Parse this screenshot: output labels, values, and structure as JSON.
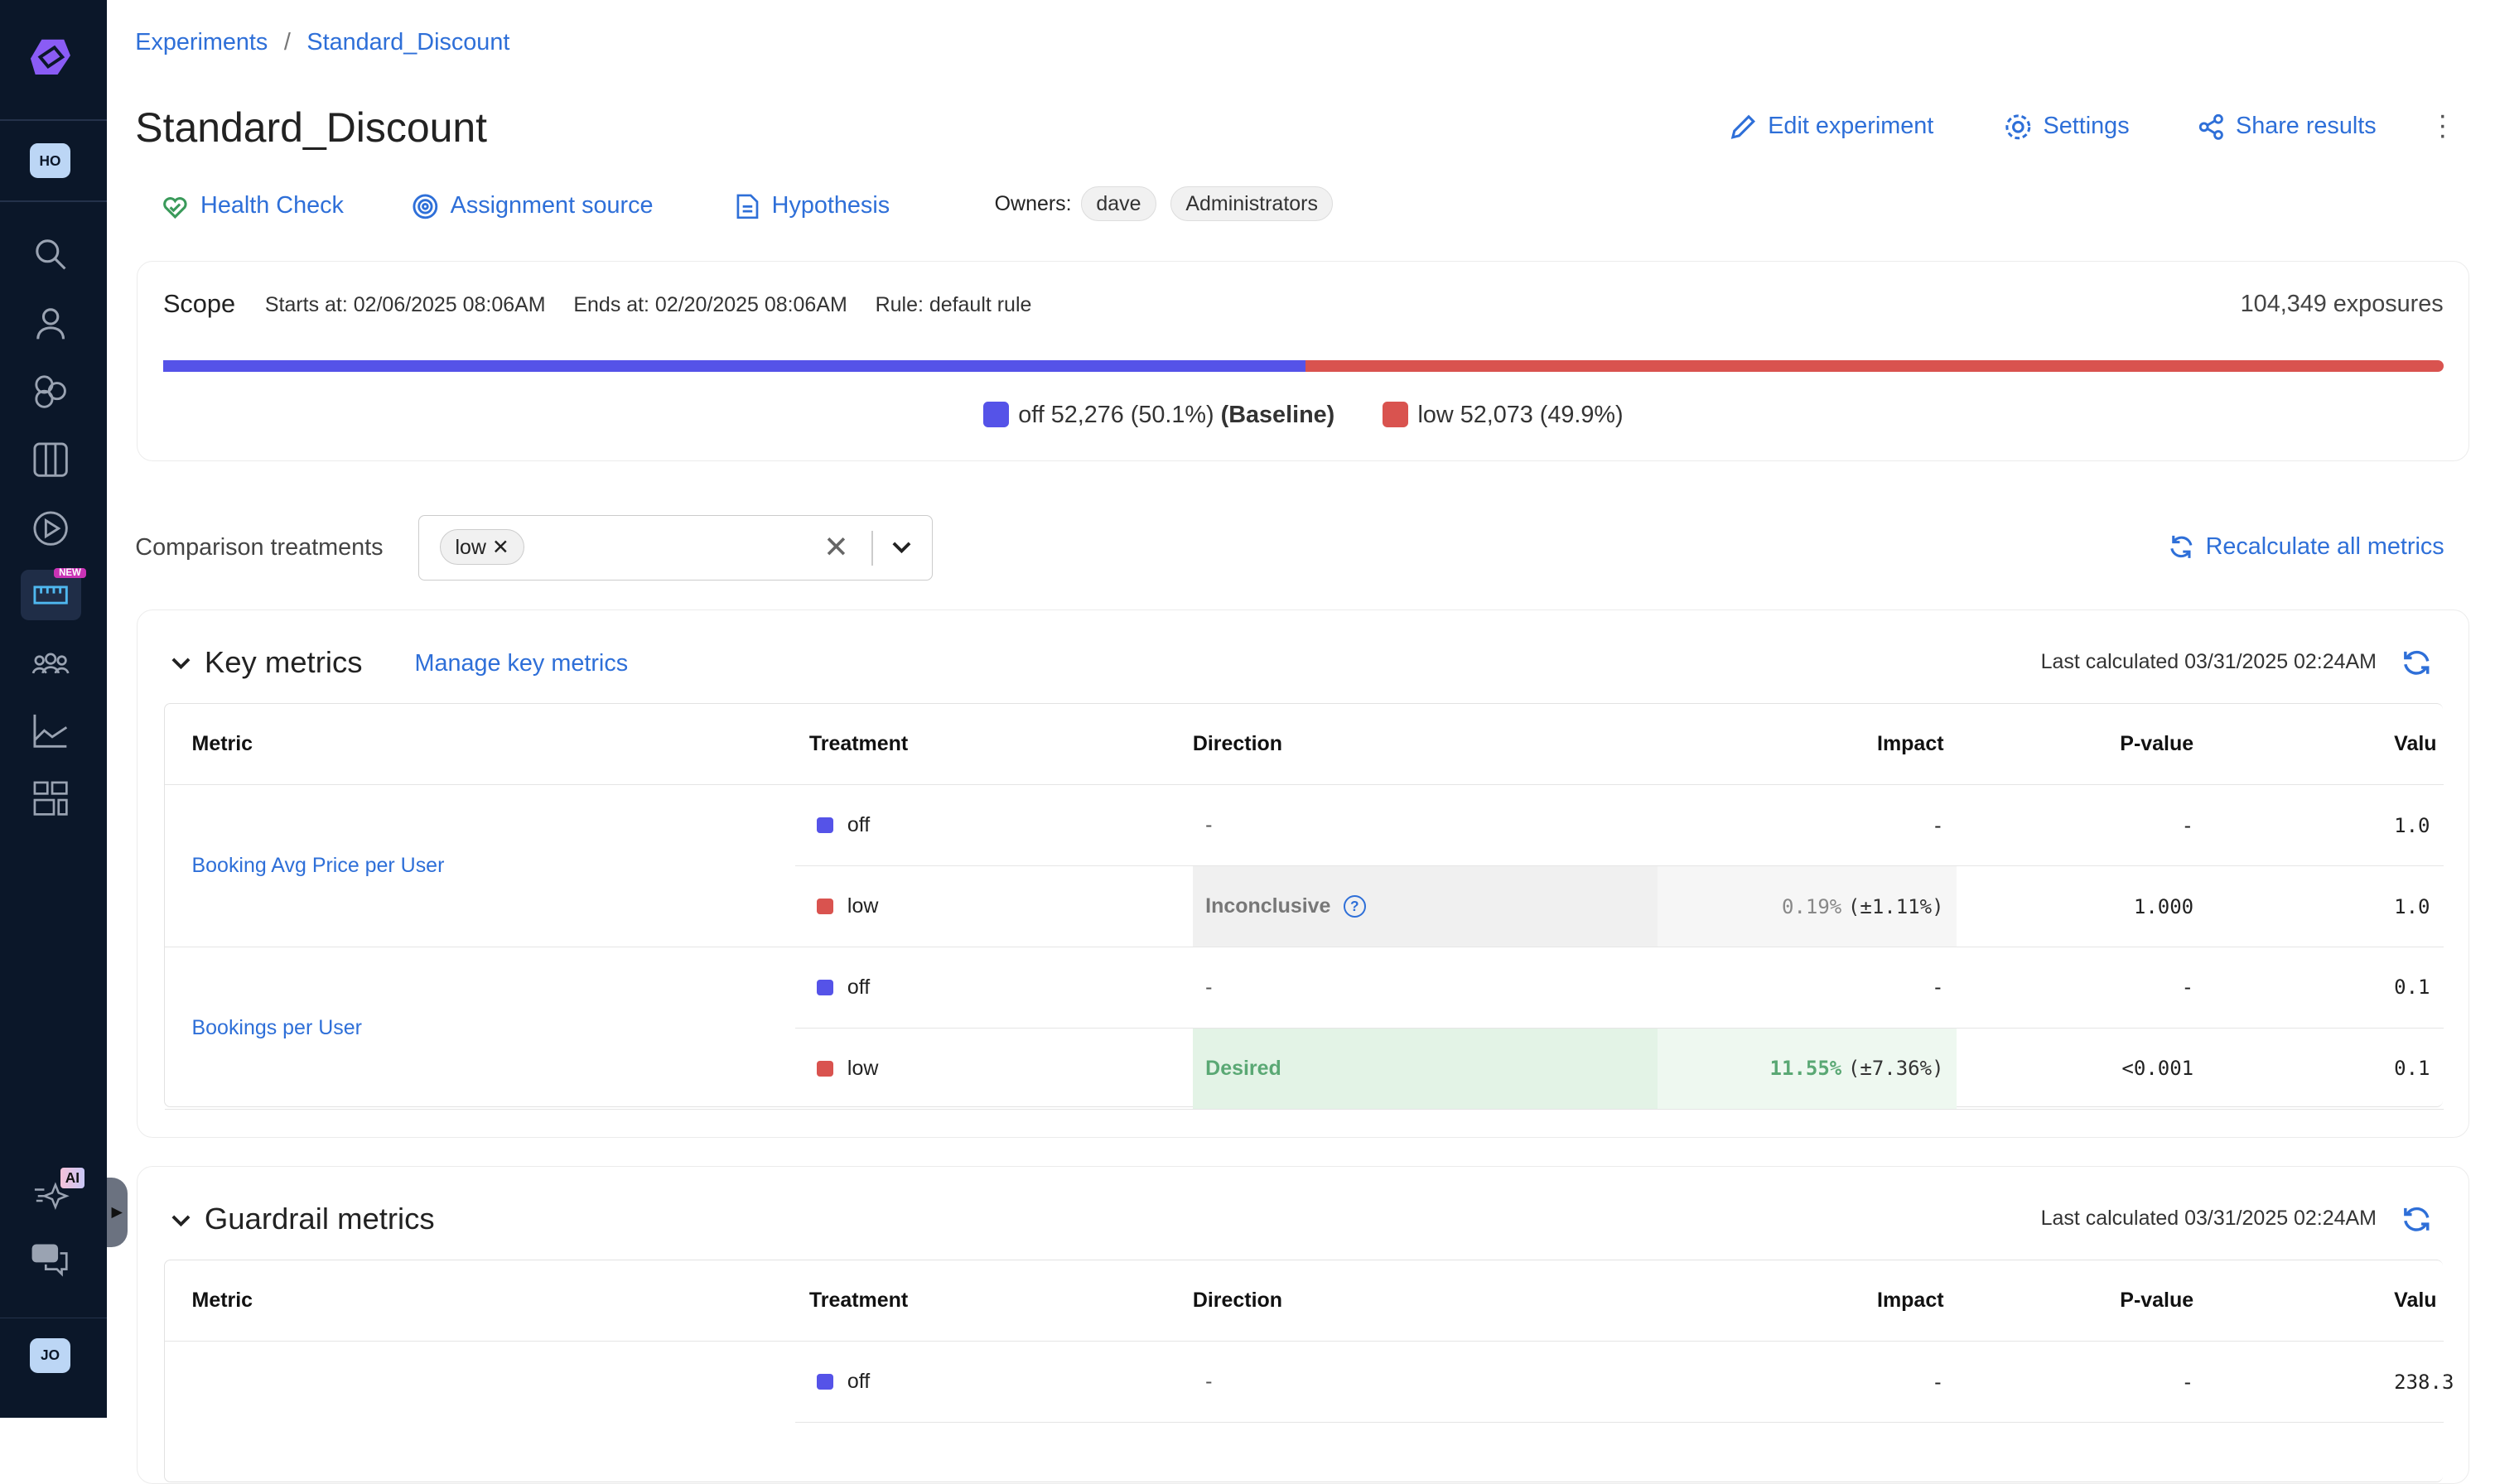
{
  "sidebar": {
    "workspace_avatar": "HO",
    "user_avatar": "JO",
    "new_badge": "NEW",
    "ai_badge": "AI",
    "icons": [
      "search-icon",
      "user-icon",
      "segments-icon",
      "columns-icon",
      "play-icon",
      "experiments-ruler-icon",
      "teams-icon",
      "analytics-chart-icon",
      "dashboard-icon"
    ]
  },
  "breadcrumb": {
    "root": "Experiments",
    "separator": "/",
    "current": "Standard_Discount"
  },
  "header": {
    "title": "Standard_Discount",
    "edit": "Edit experiment",
    "settings": "Settings",
    "share": "Share results"
  },
  "tabs": {
    "health": "Health Check",
    "assignment": "Assignment source",
    "hypothesis": "Hypothesis",
    "owners_label": "Owners:",
    "owners": [
      "dave",
      "Administrators"
    ]
  },
  "scope": {
    "title": "Scope",
    "starts": "Starts at: 02/06/2025 08:06AM",
    "ends": "Ends at: 02/20/2025 08:06AM",
    "rule": "Rule: default rule",
    "exposures": "104,349 exposures",
    "off_share": 50.1,
    "off_label": "off 52,276 (50.1%)",
    "baseline": "(Baseline)",
    "low_label": "low 52,073 (49.9%)"
  },
  "colors": {
    "off": "#5553e8",
    "low": "#d9534f",
    "link": "#2e6fd8",
    "desired_bg": "#e3f3e6",
    "desired_text": "#5aa874"
  },
  "comparison": {
    "label": "Comparison treatments",
    "chip": "low",
    "recalc": "Recalculate all metrics"
  },
  "key_metrics": {
    "title": "Key metrics",
    "manage": "Manage key metrics",
    "last_calc": "Last calculated 03/31/2025 02:24AM",
    "columns": [
      "Metric",
      "Treatment",
      "Direction",
      "Impact",
      "P-value",
      "Valu"
    ],
    "metrics": [
      {
        "name": "Booking Avg Price per User",
        "rows": [
          {
            "treatment": "off",
            "direction": "-",
            "impact": "-",
            "impact_ci": "",
            "pvalue": "-",
            "value": "1.0"
          },
          {
            "treatment": "low",
            "direction": "Inconclusive",
            "impact": "0.19%",
            "impact_ci": "(±1.11%)",
            "pvalue": "1.000",
            "value": "1.0"
          }
        ]
      },
      {
        "name": "Bookings per User",
        "rows": [
          {
            "treatment": "off",
            "direction": "-",
            "impact": "-",
            "impact_ci": "",
            "pvalue": "-",
            "value": "0.1"
          },
          {
            "treatment": "low",
            "direction": "Desired",
            "impact": "11.55%",
            "impact_ci": "(±7.36%)",
            "pvalue": "<0.001",
            "value": "0.1"
          }
        ]
      }
    ]
  },
  "guardrail_metrics": {
    "title": "Guardrail metrics",
    "last_calc": "Last calculated 03/31/2025 02:24AM",
    "columns": [
      "Metric",
      "Treatment",
      "Direction",
      "Impact",
      "P-value",
      "Valu"
    ],
    "rows": [
      {
        "treatment": "off",
        "direction": "-",
        "impact": "-",
        "pvalue": "-",
        "value": "238.3"
      }
    ]
  }
}
